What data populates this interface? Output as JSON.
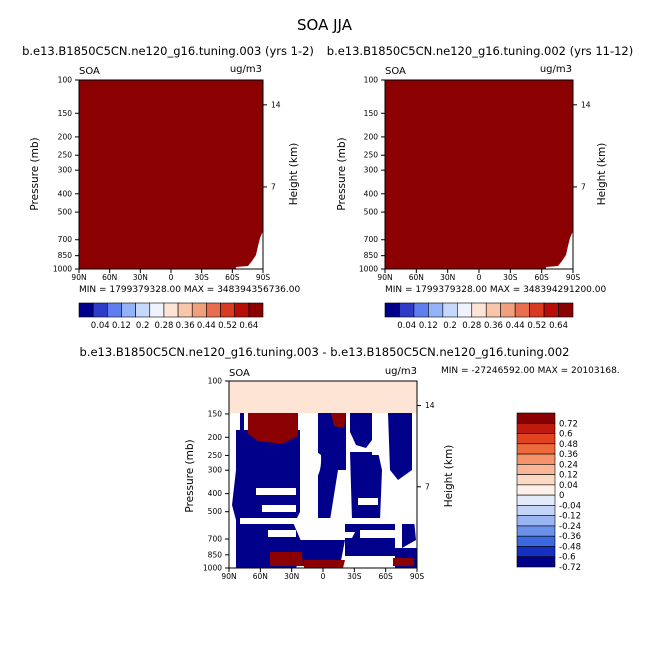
{
  "figure": {
    "title": "SOA JJA"
  },
  "colors": {
    "dark_red": "#8b0000",
    "navy": "#00008b",
    "peach": "#fde4d5"
  },
  "chart_data": [
    {
      "type": "heatmap",
      "title": "b.e13.B1850C5CN.ne120_g16.tuning.003 (yrs 1-2)",
      "left_label": "SOA",
      "right_label": "ug/m3",
      "xlabel": "",
      "ylabel": "Pressure (mb)",
      "ylabel_right": "Height (km)",
      "x_ticks": [
        "90N",
        "60N",
        "30N",
        "0",
        "30S",
        "60S",
        "90S"
      ],
      "y_ticks": [
        "100",
        "150",
        "200",
        "250",
        "300",
        "400",
        "500",
        "700",
        "850",
        "1000"
      ],
      "right_ticks": [
        "14",
        "7"
      ],
      "ylim": [
        1000,
        100
      ],
      "stats": "MIN = 1799379328.00   MAX = 348394356736.00",
      "colorbar_labels": [
        "0.04",
        "0.12",
        "0.2",
        "0.28",
        "0.36",
        "0.44",
        "0.52",
        "0.64"
      ],
      "field_summary": "field value far exceeds max contour (0.64): entire domain shaded top color except near-surface corner at 90S"
    },
    {
      "type": "heatmap",
      "title": "b.e13.B1850C5CN.ne120_g16.tuning.002 (yrs 11-12)",
      "left_label": "SOA",
      "right_label": "ug/m3",
      "xlabel": "",
      "ylabel": "Pressure (mb)",
      "ylabel_right": "Height (km)",
      "x_ticks": [
        "90N",
        "60N",
        "30N",
        "0",
        "30S",
        "60S",
        "90S"
      ],
      "y_ticks": [
        "100",
        "150",
        "200",
        "250",
        "300",
        "400",
        "500",
        "700",
        "850",
        "1000"
      ],
      "right_ticks": [
        "14",
        "7"
      ],
      "ylim": [
        1000,
        100
      ],
      "stats": "MIN = 1799379328.00   MAX = 348394291200.00",
      "colorbar_labels": [
        "0.04",
        "0.12",
        "0.2",
        "0.28",
        "0.36",
        "0.44",
        "0.52",
        "0.64"
      ],
      "field_summary": "field value far exceeds max contour (0.64): entire domain shaded top color except near-surface corner at 90S"
    },
    {
      "type": "heatmap",
      "title": "b.e13.B1850C5CN.ne120_g16.tuning.003 - b.e13.B1850C5CN.ne120_g16.tuning.002",
      "left_label": "SOA",
      "right_label": "ug/m3",
      "xlabel": "",
      "ylabel": "Pressure (mb)",
      "ylabel_right": "Height (km)",
      "x_ticks": [
        "90N",
        "60N",
        "30N",
        "0",
        "30S",
        "60S",
        "90S"
      ],
      "y_ticks": [
        "100",
        "150",
        "200",
        "250",
        "300",
        "400",
        "500",
        "700",
        "850",
        "1000"
      ],
      "right_ticks": [
        "14",
        "7"
      ],
      "ylim": [
        1000,
        100
      ],
      "stats": "MIN = -27246592.00   MAX = 20103168.",
      "colorbar_labels": [
        "0.72",
        "0.6",
        "0.48",
        "0.36",
        "0.24",
        "0.12",
        "0.04",
        "0",
        "-0.04",
        "-0.12",
        "-0.24",
        "-0.36",
        "-0.48",
        "-0.6",
        "-0.72"
      ],
      "field_summary": "difference field: 100-150 mb band shaded light peach; below 150 mb mostly extreme negative (navy) with white gaps and small extreme positive (dark red) patches"
    }
  ]
}
